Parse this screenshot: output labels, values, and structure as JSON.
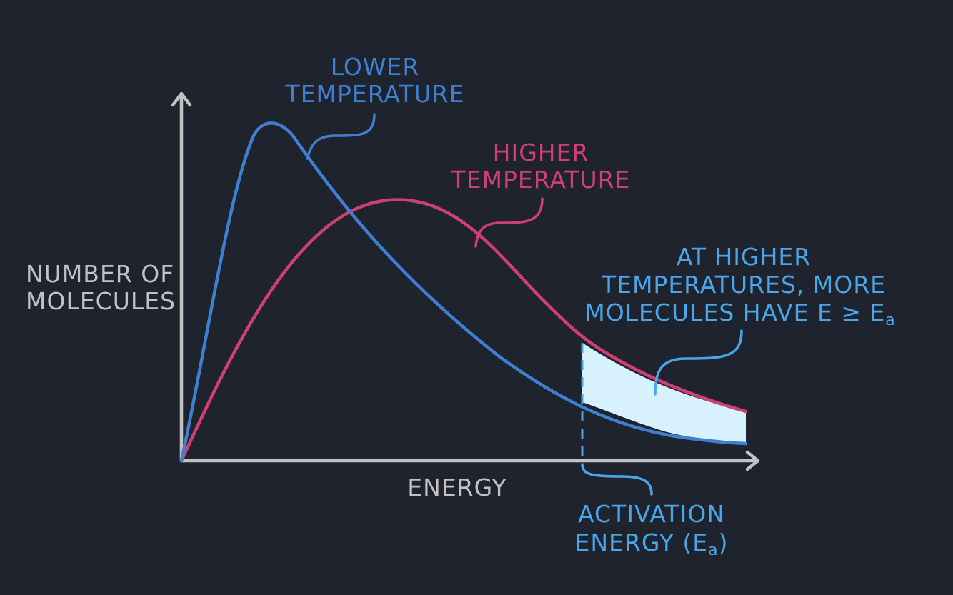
{
  "colors": {
    "background": "#1e232d",
    "axis": "#c2c2c2",
    "lower_temperature_curve": "#3f7fd0",
    "higher_temperature_curve": "#cf3f73",
    "activation_energy": "#49a6ea",
    "shaded_region": "#d8f1ff"
  },
  "axes": {
    "y_label_line1": "NUMBER OF",
    "y_label_line2": "MOLECULES",
    "x_label": "ENERGY"
  },
  "labels": {
    "lower_temperature_line1": "LOWER",
    "lower_temperature_line2": "TEMPERATURE",
    "higher_temperature_line1": "HIGHER",
    "higher_temperature_line2": "TEMPERATURE",
    "note_line1": "AT HIGHER",
    "note_line2": "TEMPERATURES, MORE",
    "note_line3_prefix": "MOLECULES HAVE E ≥ E",
    "note_line3_sub": "a",
    "activation_line1": "ACTIVATION",
    "activation_line2_prefix": "ENERGY (E",
    "activation_line2_sub": "a",
    "activation_line2_suffix": ")"
  }
}
